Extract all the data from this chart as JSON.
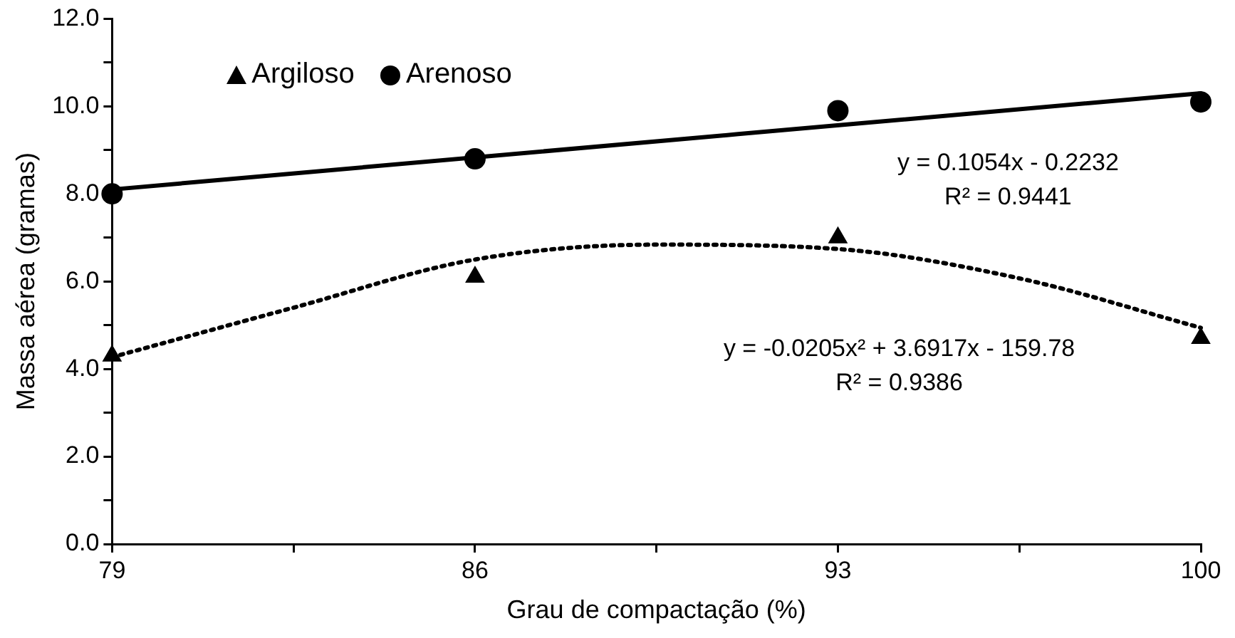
{
  "chart_data": {
    "type": "scatter",
    "xlabel": "Grau de compactação (%)",
    "ylabel": "Massa aérea (gramas)",
    "x": [
      79,
      86,
      93,
      100
    ],
    "series": [
      {
        "name": "Argiloso",
        "color": "#000000",
        "values": [
          4.3,
          6.1,
          7.0,
          4.7
        ],
        "marker": "triangle"
      },
      {
        "name": "Arenoso",
        "color": "#000000",
        "values": [
          8.0,
          8.8,
          9.9,
          10.1
        ],
        "marker": "circle"
      },
      {
        "type": "line",
        "color": "#000000",
        "x": [
          79,
          100
        ],
        "values": [
          8.1,
          10.3
        ],
        "marker": "none",
        "line_style": "solid"
      },
      {
        "type": "line",
        "color": "#000000",
        "x": [
          79,
          82.5,
          86,
          89.5,
          93,
          96.5,
          100
        ],
        "values": [
          4.27,
          5.4,
          6.5,
          6.84,
          6.74,
          6.07,
          4.94
        ],
        "marker": "none",
        "line_style": "dotted"
      }
    ],
    "xlim": [
      79,
      100
    ],
    "xticks": [
      79,
      {
        "value": 82.5,
        "label": null
      },
      86,
      {
        "value": 89.5,
        "label": null
      },
      93,
      {
        "value": 96.5,
        "label": null
      },
      100
    ],
    "ylim": [
      0,
      12
    ],
    "yticks": [
      {
        "value": 0,
        "label": "0.0"
      },
      {
        "value": 1,
        "label": null
      },
      {
        "value": 2,
        "label": "2.0"
      },
      {
        "value": 3,
        "label": null
      },
      {
        "value": 4,
        "label": "4.0"
      },
      {
        "value": 5,
        "label": null
      },
      {
        "value": 6,
        "label": "6.0"
      },
      {
        "value": 7,
        "label": null
      },
      {
        "value": 8,
        "label": "8.0"
      },
      {
        "value": 9,
        "label": null
      },
      {
        "value": 10,
        "label": "10.0"
      },
      {
        "value": 11,
        "label": null
      },
      {
        "value": 12,
        "label": "12.0"
      }
    ],
    "annotations": [
      "y = 0.1054x - 0.2232",
      "R² = 0.9441",
      "y = -0.0205x² + 3.6917x - 159.78",
      "R² = 0.9386"
    ],
    "legend": "top left",
    "grid": false
  }
}
